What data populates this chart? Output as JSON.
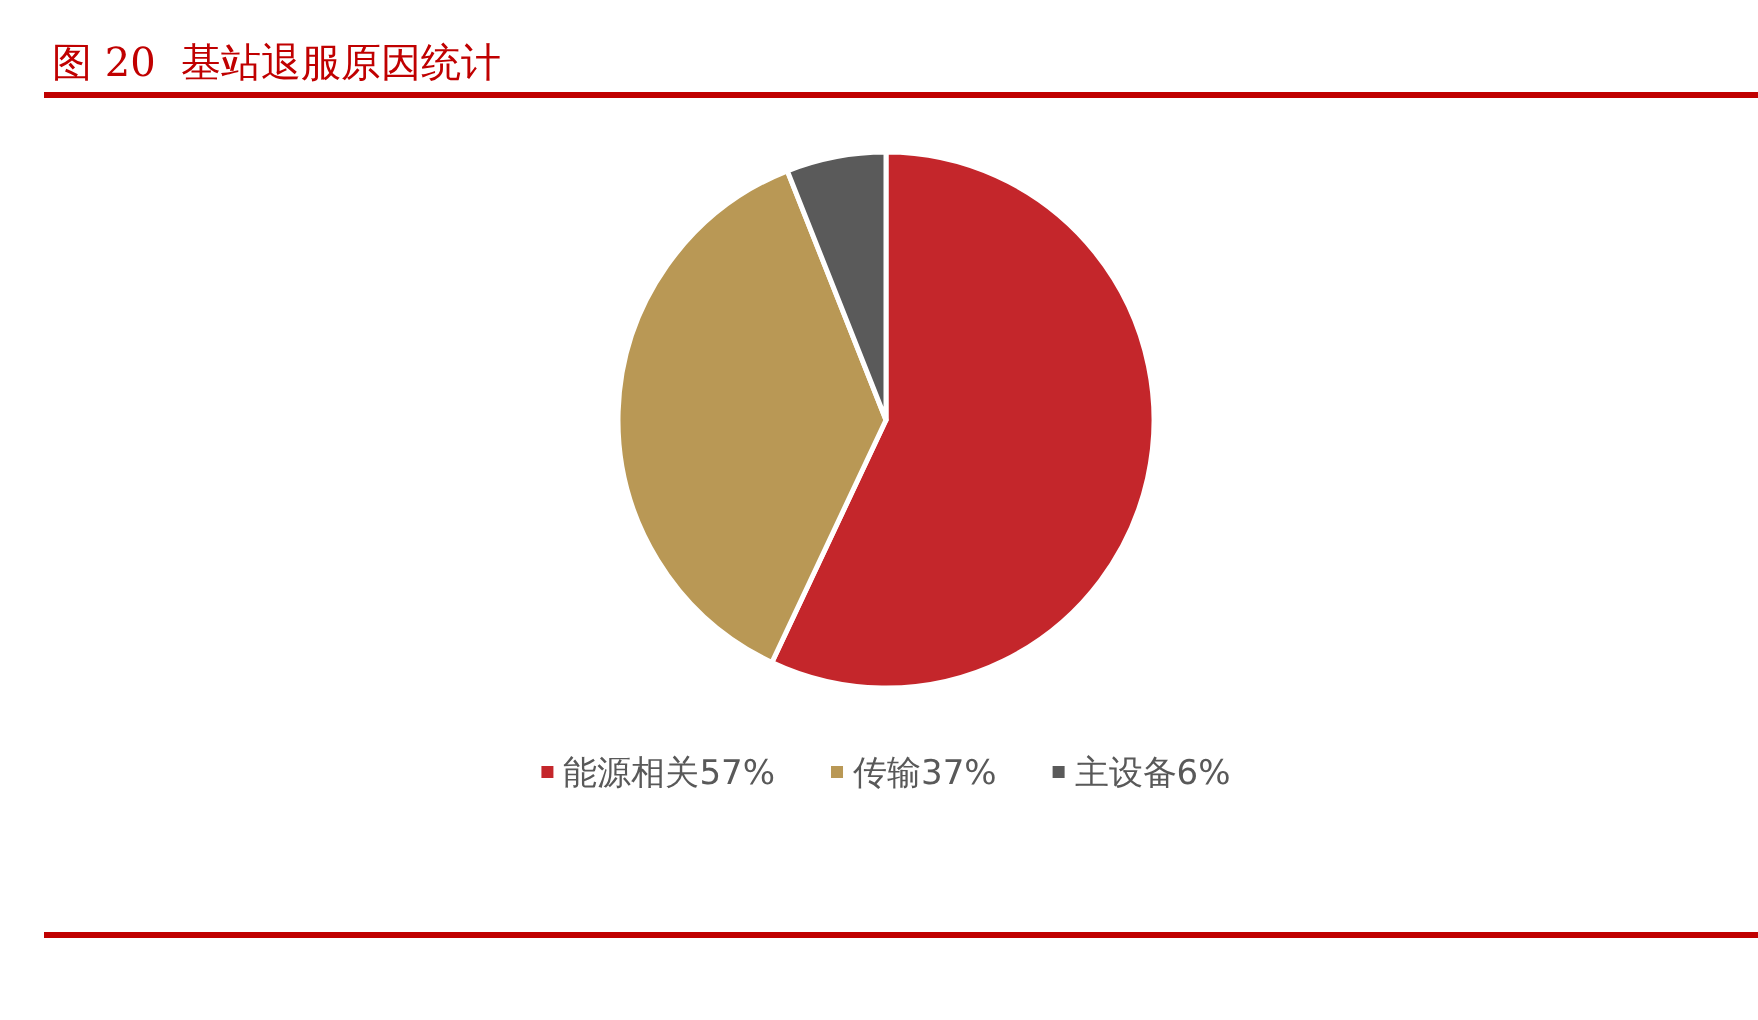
{
  "chart_data": {
    "type": "pie",
    "title": "图 20  基站退服原因统计",
    "categories": [
      "能源相关57%",
      "传输37%",
      "主设备6%"
    ],
    "values": [
      57,
      37,
      6
    ],
    "colors": [
      "#c4262b",
      "#b99855",
      "#5a5a5a"
    ],
    "legend": "bottom"
  }
}
